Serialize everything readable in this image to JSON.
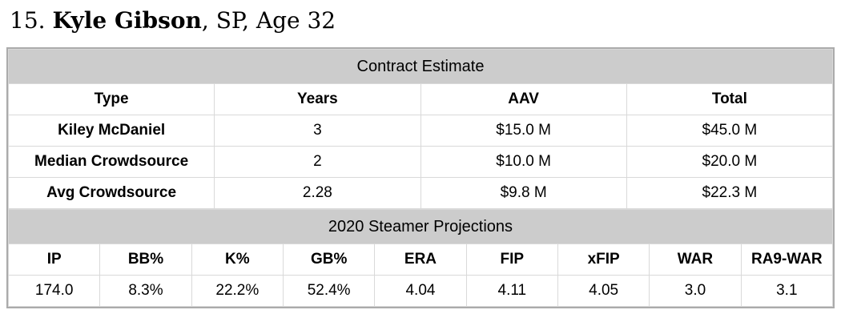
{
  "page_title": {
    "prefix": "15. ",
    "name": "Kyle Gibson",
    "suffix": ", SP, Age 32"
  },
  "contract": {
    "section_title": "Contract Estimate",
    "columns": [
      "Type",
      "Years",
      "AAV",
      "Total"
    ],
    "rows": [
      {
        "type": "Kiley McDaniel",
        "years": "3",
        "aav": "$15.0 M",
        "total": "$45.0 M"
      },
      {
        "type": "Median Crowdsource",
        "years": "2",
        "aav": "$10.0 M",
        "total": "$20.0 M"
      },
      {
        "type": "Avg Crowdsource",
        "years": "2.28",
        "aav": "$9.8 M",
        "total": "$22.3 M"
      }
    ]
  },
  "projections": {
    "section_title": "2020 Steamer Projections",
    "columns": [
      "IP",
      "BB%",
      "K%",
      "GB%",
      "ERA",
      "FIP",
      "xFIP",
      "WAR",
      "RA9-WAR"
    ],
    "values": [
      "174.0",
      "8.3%",
      "22.2%",
      "52.4%",
      "4.04",
      "4.11",
      "4.05",
      "3.0",
      "3.1"
    ]
  },
  "colors": {
    "section_header_bg": "#cccccc",
    "cell_border": "#d9d9d9",
    "outer_border": "#ababab",
    "text": "#000000",
    "background": "#ffffff"
  }
}
